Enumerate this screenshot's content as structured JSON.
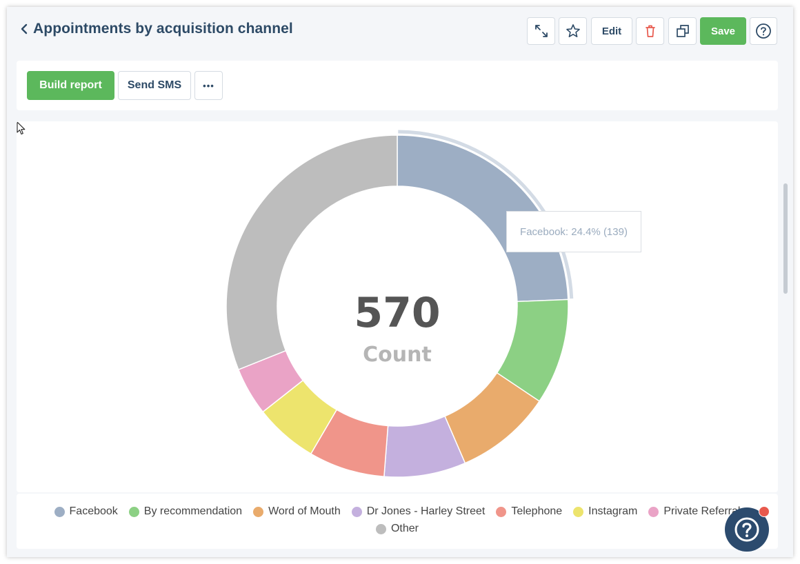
{
  "header": {
    "title": "Appointments by acquisition channel",
    "edit_label": "Edit",
    "save_label": "Save"
  },
  "toolbar": {
    "build_report_label": "Build report",
    "send_sms_label": "Send SMS",
    "more_label": "•••"
  },
  "tooltip": {
    "text": "Facebook: 24.4% (139)"
  },
  "center": {
    "value": "570",
    "label": "Count"
  },
  "colors": {
    "accent_green": "#5cb85c",
    "title_blue": "#2d4a66",
    "delete_red": "#e8594d"
  },
  "icons": {
    "back": "chevron-left-icon",
    "expand": "expand-icon",
    "favorite": "star-icon",
    "delete": "trash-icon",
    "duplicate": "copy-icon",
    "help": "question-circle-icon"
  },
  "chart_data": {
    "type": "pie",
    "variant": "donut",
    "total": 570,
    "total_label": "Count",
    "slices": [
      {
        "name": "Facebook",
        "value": 139,
        "percent": 24.4,
        "color": "#9daec4",
        "highlighted": true
      },
      {
        "name": "By recommendation",
        "value": 57,
        "color": "#8cd084"
      },
      {
        "name": "Word of Mouth",
        "value": 52,
        "color": "#e9ab6c"
      },
      {
        "name": "Dr Jones - Harley Street",
        "value": 44,
        "color": "#c4b0de"
      },
      {
        "name": "Telephone",
        "value": 41,
        "color": "#f0958a"
      },
      {
        "name": "Instagram",
        "value": 34,
        "color": "#ede46d"
      },
      {
        "name": "Private Referral",
        "value": 26,
        "color": "#eaa3c6"
      },
      {
        "name": "Other",
        "value": 177,
        "color": "#bdbdbd"
      }
    ],
    "legend_position": "bottom"
  }
}
